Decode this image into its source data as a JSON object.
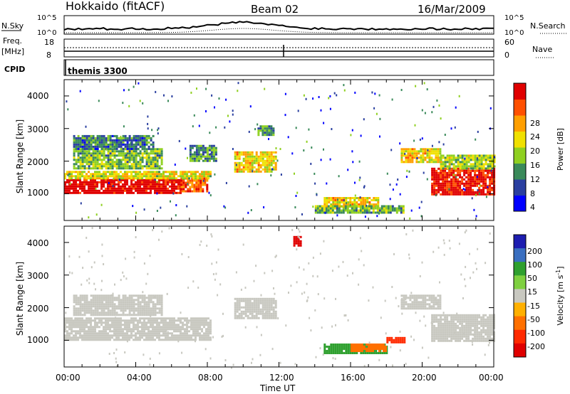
{
  "header": {
    "station": "Hokkaido (fitACF)",
    "beam": "Beam 02",
    "date": "16/Mar/2009"
  },
  "noise_panel": {
    "left_label": "N.Sky",
    "left_ticks": [
      "10^5",
      "10^0"
    ],
    "right_ticks": [
      "10^5",
      "10^0"
    ],
    "right_label": "N.Search"
  },
  "freq_panel": {
    "left_label": "Freq.",
    "left_unit": "[MHz]",
    "left_ticks": [
      "18",
      "8"
    ],
    "right_ticks": [
      "60",
      "0"
    ],
    "right_label": "Nave"
  },
  "cpid_panel": {
    "label": "CPID",
    "program": "themis 3300"
  },
  "power_panel": {
    "ylabel": "Slant Range [km]",
    "yticks": [
      "4000",
      "3000",
      "2000",
      "1000"
    ],
    "colorbar_label": "Power [dB]",
    "colorbar_ticks": [
      "28",
      "24",
      "20",
      "16",
      "12",
      "8",
      "4"
    ],
    "colors": [
      "#0000ff",
      "#2a3fa0",
      "#3a8a5a",
      "#8fd020",
      "#f0e000",
      "#ff9f00",
      "#ff5000",
      "#e00000"
    ]
  },
  "velocity_panel": {
    "ylabel": "Slant Range [km]",
    "yticks": [
      "4000",
      "3000",
      "2000",
      "1000"
    ],
    "colorbar_label": "Velocity [m s",
    "colorbar_sup": "-1",
    "colorbar_ticks": [
      "200",
      "100",
      "50",
      "15",
      "-15",
      "-50",
      "-100",
      "-200"
    ],
    "colors": [
      "#1d1db0",
      "#3a6fc0",
      "#2fa02f",
      "#7fd040",
      "#c8c8c0",
      "#ffb000",
      "#ff7000",
      "#ff2a00",
      "#e00000"
    ]
  },
  "xaxis": {
    "label": "Time UT",
    "ticks": [
      "00:00",
      "04:00",
      "08:00",
      "12:00",
      "16:00",
      "20:00",
      "00:00"
    ]
  },
  "chart_data": [
    {
      "type": "heatmap",
      "title": "Power",
      "x_range_hours": [
        0,
        24
      ],
      "y_range_km": [
        180,
        4500
      ],
      "colorbar_range_db": [
        0,
        30
      ],
      "regions": [
        {
          "t_start": 0.0,
          "t_end": 6.5,
          "r_start": 1000,
          "r_end": 1450,
          "level": 30
        },
        {
          "t_start": 6.5,
          "t_end": 8.0,
          "r_start": 1050,
          "r_end": 1500,
          "level": 24
        },
        {
          "t_start": 0.0,
          "t_end": 8.2,
          "r_start": 1450,
          "r_end": 1700,
          "level": 16
        },
        {
          "t_start": 0.5,
          "t_end": 5.5,
          "r_start": 1800,
          "r_end": 2400,
          "level": 12
        },
        {
          "t_start": 0.5,
          "t_end": 5.0,
          "r_start": 2400,
          "r_end": 2800,
          "level": 8
        },
        {
          "t_start": 7.0,
          "t_end": 8.5,
          "r_start": 2000,
          "r_end": 2500,
          "level": 10
        },
        {
          "t_start": 9.5,
          "t_end": 11.8,
          "r_start": 1700,
          "r_end": 2300,
          "level": 18
        },
        {
          "t_start": 10.8,
          "t_end": 11.7,
          "r_start": 2800,
          "r_end": 3100,
          "level": 10
        },
        {
          "t_start": 14.5,
          "t_end": 17.5,
          "r_start": 600,
          "r_end": 900,
          "level": 18
        },
        {
          "t_start": 14.0,
          "t_end": 19.0,
          "r_start": 400,
          "r_end": 650,
          "level": 12
        },
        {
          "t_start": 18.8,
          "t_end": 21.0,
          "r_start": 2000,
          "r_end": 2400,
          "level": 18
        },
        {
          "t_start": 20.5,
          "t_end": 24.0,
          "r_start": 1000,
          "r_end": 1800,
          "level": 28
        },
        {
          "t_start": 21.0,
          "t_end": 24.0,
          "r_start": 1800,
          "r_end": 2200,
          "level": 14
        }
      ]
    },
    {
      "type": "heatmap",
      "title": "Velocity",
      "x_range_hours": [
        0,
        24
      ],
      "y_range_km": [
        180,
        4500
      ],
      "colorbar_range_ms": [
        -200,
        200
      ],
      "regions": [
        {
          "t_start": 0.0,
          "t_end": 8.2,
          "r_start": 1000,
          "r_end": 1700,
          "level": 0
        },
        {
          "t_start": 0.5,
          "t_end": 5.5,
          "r_start": 1800,
          "r_end": 2400,
          "level": 0
        },
        {
          "t_start": 9.5,
          "t_end": 11.8,
          "r_start": 1700,
          "r_end": 2300,
          "level": 0
        },
        {
          "t_start": 12.8,
          "t_end": 13.2,
          "r_start": 3900,
          "r_end": 4200,
          "level": -200
        },
        {
          "t_start": 14.5,
          "t_end": 18.0,
          "r_start": 600,
          "r_end": 900,
          "level": 60
        },
        {
          "t_start": 16.0,
          "t_end": 18.0,
          "r_start": 700,
          "r_end": 900,
          "level": -60
        },
        {
          "t_start": 18.0,
          "t_end": 19.0,
          "r_start": 950,
          "r_end": 1100,
          "level": -150
        },
        {
          "t_start": 18.8,
          "t_end": 21.0,
          "r_start": 2000,
          "r_end": 2400,
          "level": 0
        },
        {
          "t_start": 20.5,
          "t_end": 24.0,
          "r_start": 1000,
          "r_end": 1800,
          "level": 0
        }
      ]
    }
  ]
}
